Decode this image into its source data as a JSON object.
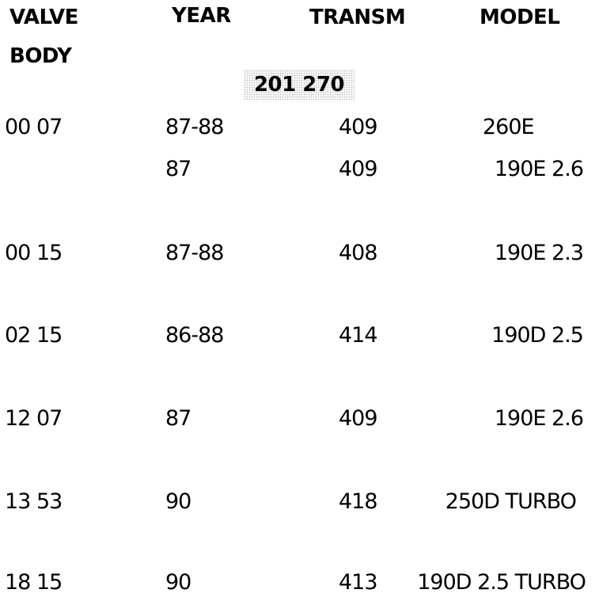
{
  "headers": {
    "valve_body": [
      "VALVE",
      "BODY"
    ],
    "year": "YEAR",
    "transm": "TRANSM",
    "model": "MODEL"
  },
  "group_label": "201 270",
  "rows": [
    {
      "valve_body": "00 07",
      "year": "87-88",
      "transm": "409",
      "model": "260E"
    },
    {
      "valve_body": "",
      "year": "87",
      "transm": "409",
      "model": "190E 2.6"
    },
    {
      "valve_body": "00 15",
      "year": "87-88",
      "transm": "408",
      "model": "190E 2.3"
    },
    {
      "valve_body": "02 15",
      "year": "86-88",
      "transm": "414",
      "model": "190D 2.5"
    },
    {
      "valve_body": "12 07",
      "year": "87",
      "transm": "409",
      "model": "190E 2.6"
    },
    {
      "valve_body": "13 53",
      "year": "90",
      "transm": "418",
      "model": "250D TURBO"
    },
    {
      "valve_body": "18 15",
      "year": "90",
      "transm": "413",
      "model": "190D 2.5 TURBO"
    }
  ]
}
